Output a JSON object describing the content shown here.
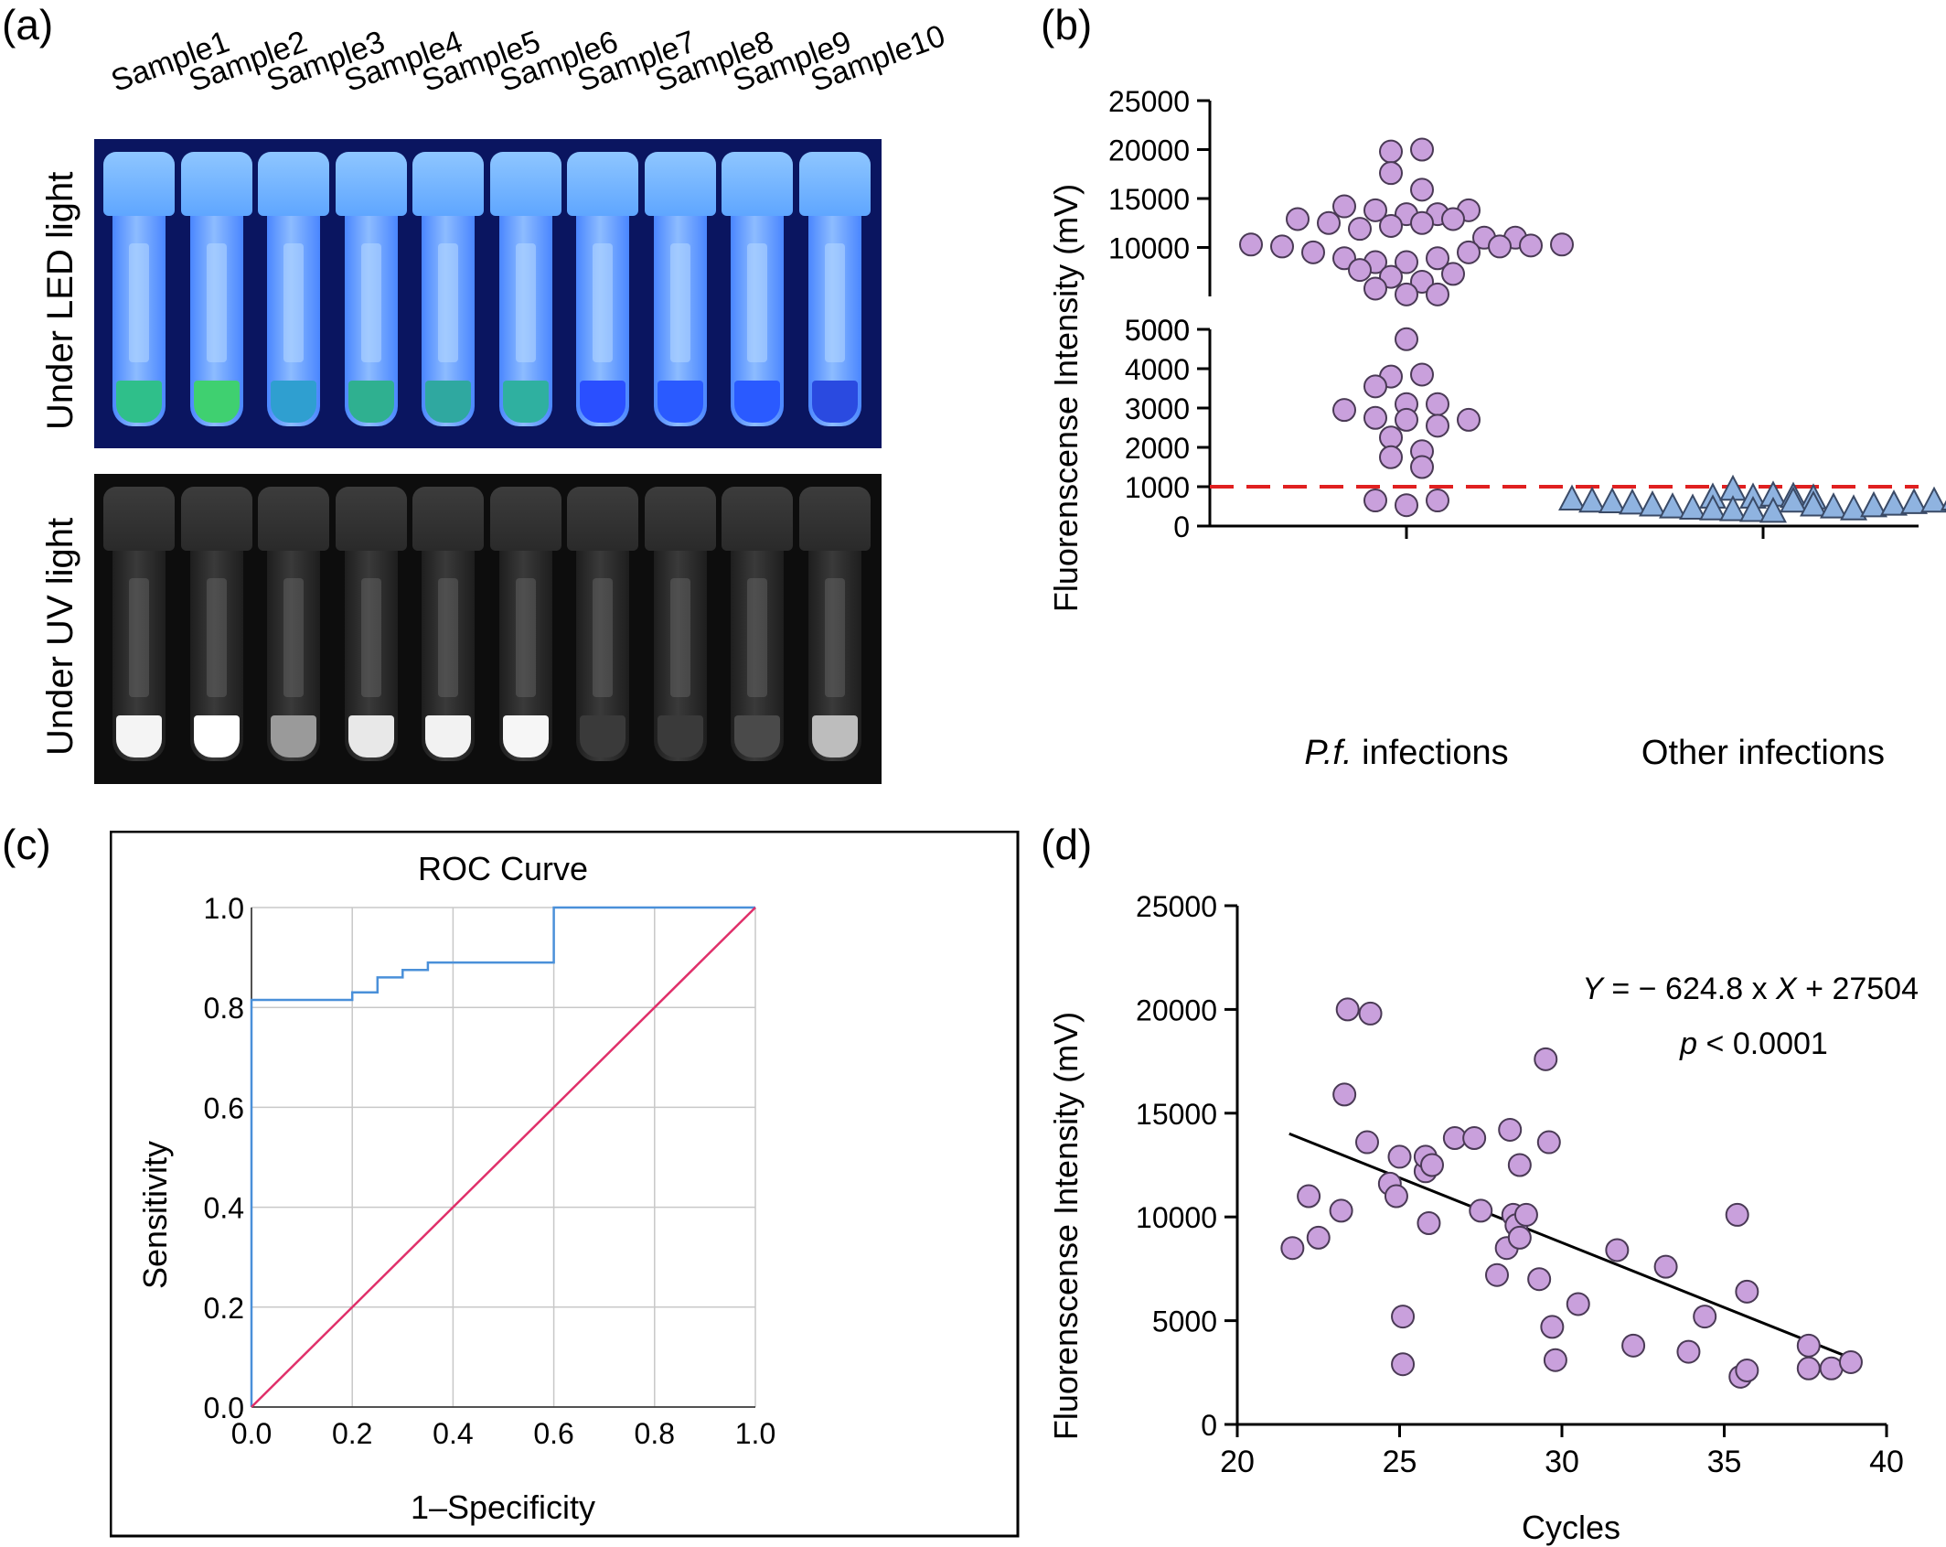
{
  "panel_labels": {
    "a": "(a)",
    "b": "(b)",
    "c": "(c)",
    "d": "(d)"
  },
  "panel_a": {
    "sample_labels": [
      "Sample1",
      "Sample2",
      "Sample3",
      "Sample4",
      "Sample5",
      "Sample6",
      "Sample7",
      "Sample8",
      "Sample9",
      "Sample10"
    ],
    "led_label": "Under LED light",
    "uv_label": "Under UV light",
    "led_liquid_colors": [
      "#2fbf8a",
      "#3fd070",
      "#2f9fd0",
      "#2fb090",
      "#2fa8a0",
      "#2fb0a0",
      "#2a4fff",
      "#2a5aff",
      "#2a5aff",
      "#2a4ae0"
    ],
    "uv_liquid_colors": [
      "#f4f4f4",
      "#ffffff",
      "#9a9a9a",
      "#e8e8e8",
      "#f2f2f2",
      "#f6f6f6",
      "#3a3a3a",
      "#3a3a3a",
      "#4a4a4a",
      "#bdbdbd"
    ]
  },
  "chart_data": [
    {
      "panel": "b",
      "type": "scatter",
      "ylabel": "Fluorenscense Intensity (mV)",
      "categories": [
        "P.f. infections",
        "Other infections"
      ],
      "category_labels": [
        {
          "italic": "P.f.",
          "text": " infections"
        },
        {
          "italic": "",
          "text": "Other infections"
        }
      ],
      "y_axis_broken": true,
      "y_lower_ticks": [
        "0",
        "1000",
        "2000",
        "3000",
        "4000",
        "5000"
      ],
      "y_upper_ticks": [
        "5000",
        "10000",
        "15000",
        "20000",
        "25000"
      ],
      "ylim_lower": [
        0,
        5000
      ],
      "ylim_upper": [
        5000,
        25000
      ],
      "threshold": 1000,
      "threshold_color": "#e02020",
      "marker_colors": {
        "pf": "#c9a0dc",
        "other": "#8fb3e0"
      },
      "series": [
        {
          "category": "P.f. infections",
          "marker": "circle",
          "values": [
            19800,
            20000,
            17600,
            15900,
            14200,
            13800,
            13400,
            12900,
            12500,
            11900,
            12200,
            12500,
            12900,
            13400,
            13800,
            11000,
            10300,
            10100,
            9500,
            8900,
            8500,
            8500,
            8900,
            9500,
            10100,
            10200,
            10300,
            11000,
            7700,
            7000,
            5800,
            5200,
            5200,
            6500,
            7300,
            4750,
            3800,
            3850,
            3550,
            3100,
            2950,
            3100,
            2750,
            2700,
            2550,
            2700,
            2250,
            1750,
            1900,
            1500,
            650,
            530,
            650
          ]
        },
        {
          "category": "Other infections",
          "marker": "triangle",
          "values": [
            700,
            650,
            600,
            580,
            550,
            500,
            450,
            420,
            400,
            380,
            360,
            340,
            900,
            600,
            500,
            450,
            400,
            480,
            520,
            560,
            600,
            650,
            700,
            750,
            720,
            680
          ]
        }
      ]
    },
    {
      "panel": "c",
      "type": "line",
      "title": "ROC Curve",
      "xlabel": "1–Specificity",
      "ylabel": "Sensitivity",
      "xlim": [
        0,
        1
      ],
      "ylim": [
        0,
        1
      ],
      "x_ticks": [
        "0.0",
        "0.2",
        "0.4",
        "0.6",
        "0.8",
        "1.0"
      ],
      "y_ticks": [
        "0.0",
        "0.2",
        "0.4",
        "0.6",
        "0.8",
        "1.0"
      ],
      "grid": true,
      "series": [
        {
          "color": "#4a90d9",
          "x": [
            0,
            0,
            0.2,
            0.2,
            0.25,
            0.25,
            0.3,
            0.3,
            0.35,
            0.35,
            0.6,
            0.6,
            1.0
          ],
          "y": [
            0,
            0.815,
            0.815,
            0.83,
            0.83,
            0.86,
            0.86,
            0.875,
            0.875,
            0.89,
            0.89,
            1.0,
            1.0
          ]
        },
        {
          "color": "#e0306a",
          "x": [
            0,
            1
          ],
          "y": [
            0,
            1
          ]
        }
      ]
    },
    {
      "panel": "d",
      "type": "scatter",
      "xlabel": "Cycles",
      "ylabel": "Fluorenscense Intensity (mV)",
      "xlim": [
        20,
        40
      ],
      "ylim": [
        0,
        25000
      ],
      "x_ticks": [
        "20",
        "25",
        "30",
        "35",
        "40"
      ],
      "y_ticks": [
        "0",
        "5000",
        "10000",
        "15000",
        "20000",
        "25000"
      ],
      "marker_color": "#c9a0dc",
      "equation_parts": {
        "y": "Y",
        "mid": " = − 624.8 x ",
        "x": "X",
        "end": " + 27504"
      },
      "pvalue_parts": {
        "p": "p",
        "rest": " < 0.0001"
      },
      "fit": {
        "slope": -624.8,
        "intercept": 27504,
        "x_range": [
          21.6,
          38.9
        ]
      },
      "x": [
        21.7,
        22.2,
        22.5,
        23.2,
        23.3,
        23.4,
        24.0,
        24.1,
        24.7,
        24.9,
        25.0,
        25.1,
        25.1,
        25.8,
        25.8,
        25.9,
        26.0,
        26.7,
        27.3,
        27.5,
        28.0,
        28.3,
        28.4,
        28.5,
        28.6,
        28.7,
        28.7,
        28.9,
        29.3,
        29.5,
        29.6,
        29.7,
        29.8,
        30.5,
        31.7,
        32.2,
        33.2,
        33.9,
        34.4,
        35.4,
        35.5,
        35.7,
        35.7,
        37.6,
        37.6,
        38.3,
        38.9
      ],
      "y": [
        8500,
        11000,
        9000,
        10300,
        15900,
        20000,
        13600,
        19800,
        11600,
        11000,
        12900,
        5200,
        2900,
        12200,
        12900,
        9700,
        12500,
        13800,
        13800,
        10300,
        7200,
        8500,
        14200,
        10100,
        9600,
        12500,
        9000,
        10100,
        7000,
        17600,
        13600,
        4700,
        3100,
        5800,
        8400,
        3800,
        7600,
        3500,
        5200,
        10100,
        2300,
        6400,
        2600,
        3800,
        2700,
        2700,
        3000
      ]
    }
  ]
}
